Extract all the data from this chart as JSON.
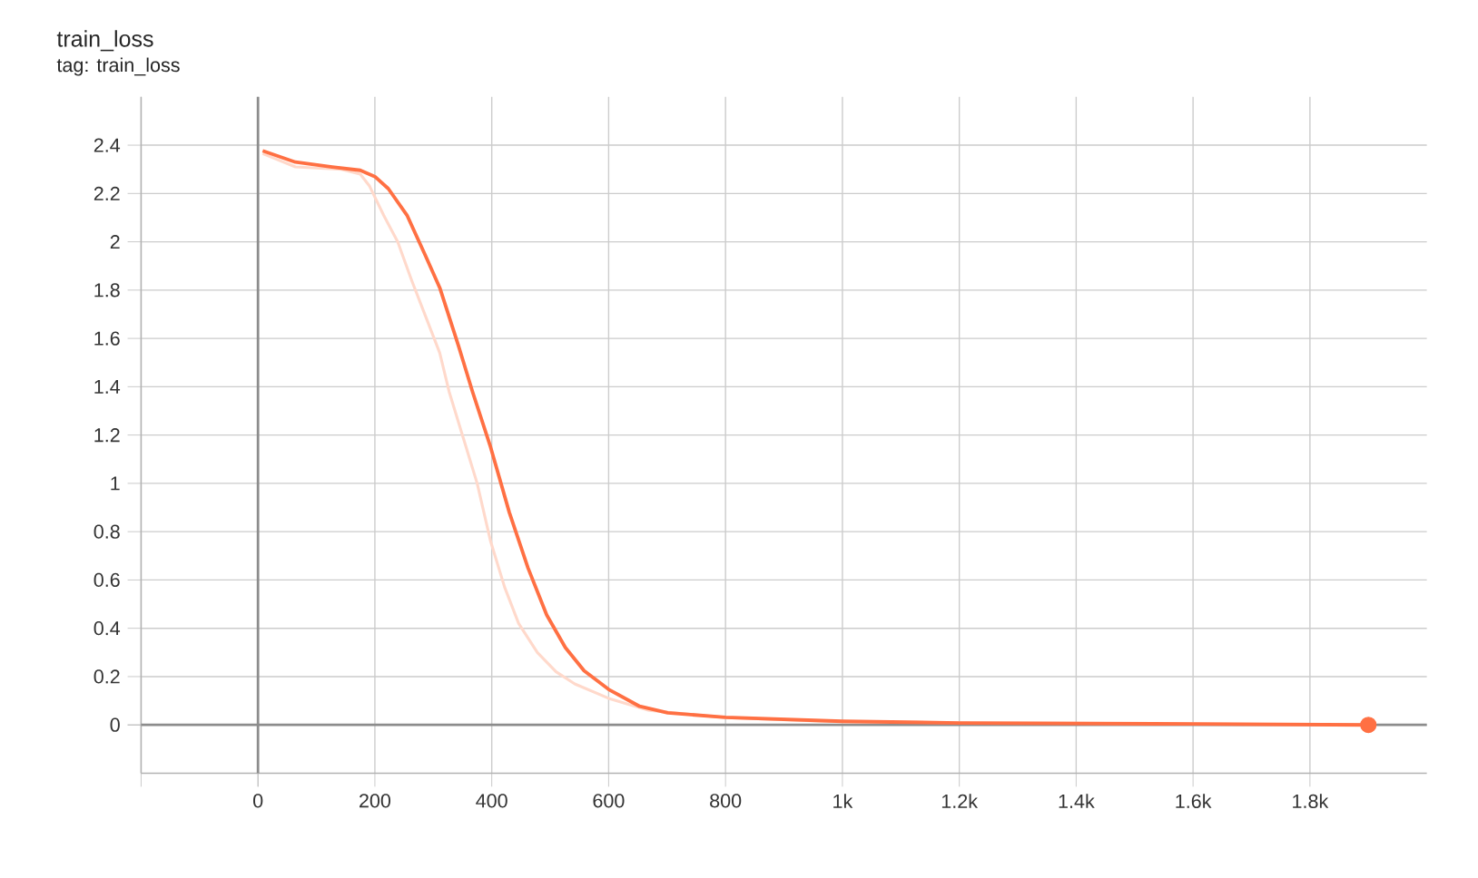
{
  "chart_data": {
    "type": "line",
    "title": "train_loss",
    "subtitle": "tag: train_loss",
    "xlim": [
      -200,
      2000
    ],
    "ylim": [
      -0.2,
      2.6
    ],
    "xticks": [
      {
        "value": -200,
        "label": null
      },
      0,
      200,
      400,
      600,
      800,
      {
        "value": 1000,
        "label": "1k"
      },
      {
        "value": 1200,
        "label": "1.2k"
      },
      {
        "value": 1400,
        "label": "1.4k"
      },
      {
        "value": 1600,
        "label": "1.6k"
      },
      {
        "value": 1800,
        "label": "1.8k"
      }
    ],
    "yticks": [
      0,
      0.2,
      0.4,
      0.6,
      0.8,
      1,
      1.2,
      1.4,
      1.6,
      1.8,
      2,
      2.2,
      2.4
    ],
    "grid": true,
    "series": [
      {
        "color": "#ffd9cb",
        "x": [
          8,
          64,
          143,
          175,
          191,
          215,
          239,
          263,
          287,
          311,
          327,
          351,
          375,
          398,
          422,
          446,
          478,
          510,
          542,
          600,
          669,
          800,
          1000,
          1900
        ],
        "values": [
          2.365,
          2.31,
          2.3,
          2.28,
          2.23,
          2.11,
          2.0,
          1.84,
          1.69,
          1.54,
          1.38,
          1.19,
          1.0,
          0.76,
          0.57,
          0.42,
          0.3,
          0.22,
          0.17,
          0.11,
          0.06,
          0.03,
          0.012,
          0
        ]
      },
      {
        "color": "#ff7043",
        "x": [
          8,
          64,
          127,
          175,
          200,
          223,
          255,
          287,
          311,
          343,
          367,
          398,
          430,
          462,
          494,
          526,
          558,
          600,
          653,
          701,
          800,
          1000,
          1200,
          1600,
          1900
        ],
        "values": [
          2.377,
          2.33,
          2.31,
          2.296,
          2.27,
          2.22,
          2.11,
          1.94,
          1.81,
          1.57,
          1.38,
          1.15,
          0.88,
          0.65,
          0.455,
          0.32,
          0.224,
          0.147,
          0.077,
          0.05,
          0.031,
          0.015,
          0.008,
          0.004,
          0
        ]
      },
      {
        "type": "scatter",
        "marker": "circle",
        "color": "#ff7043",
        "x": [
          1900
        ],
        "values": [
          0
        ]
      }
    ]
  }
}
